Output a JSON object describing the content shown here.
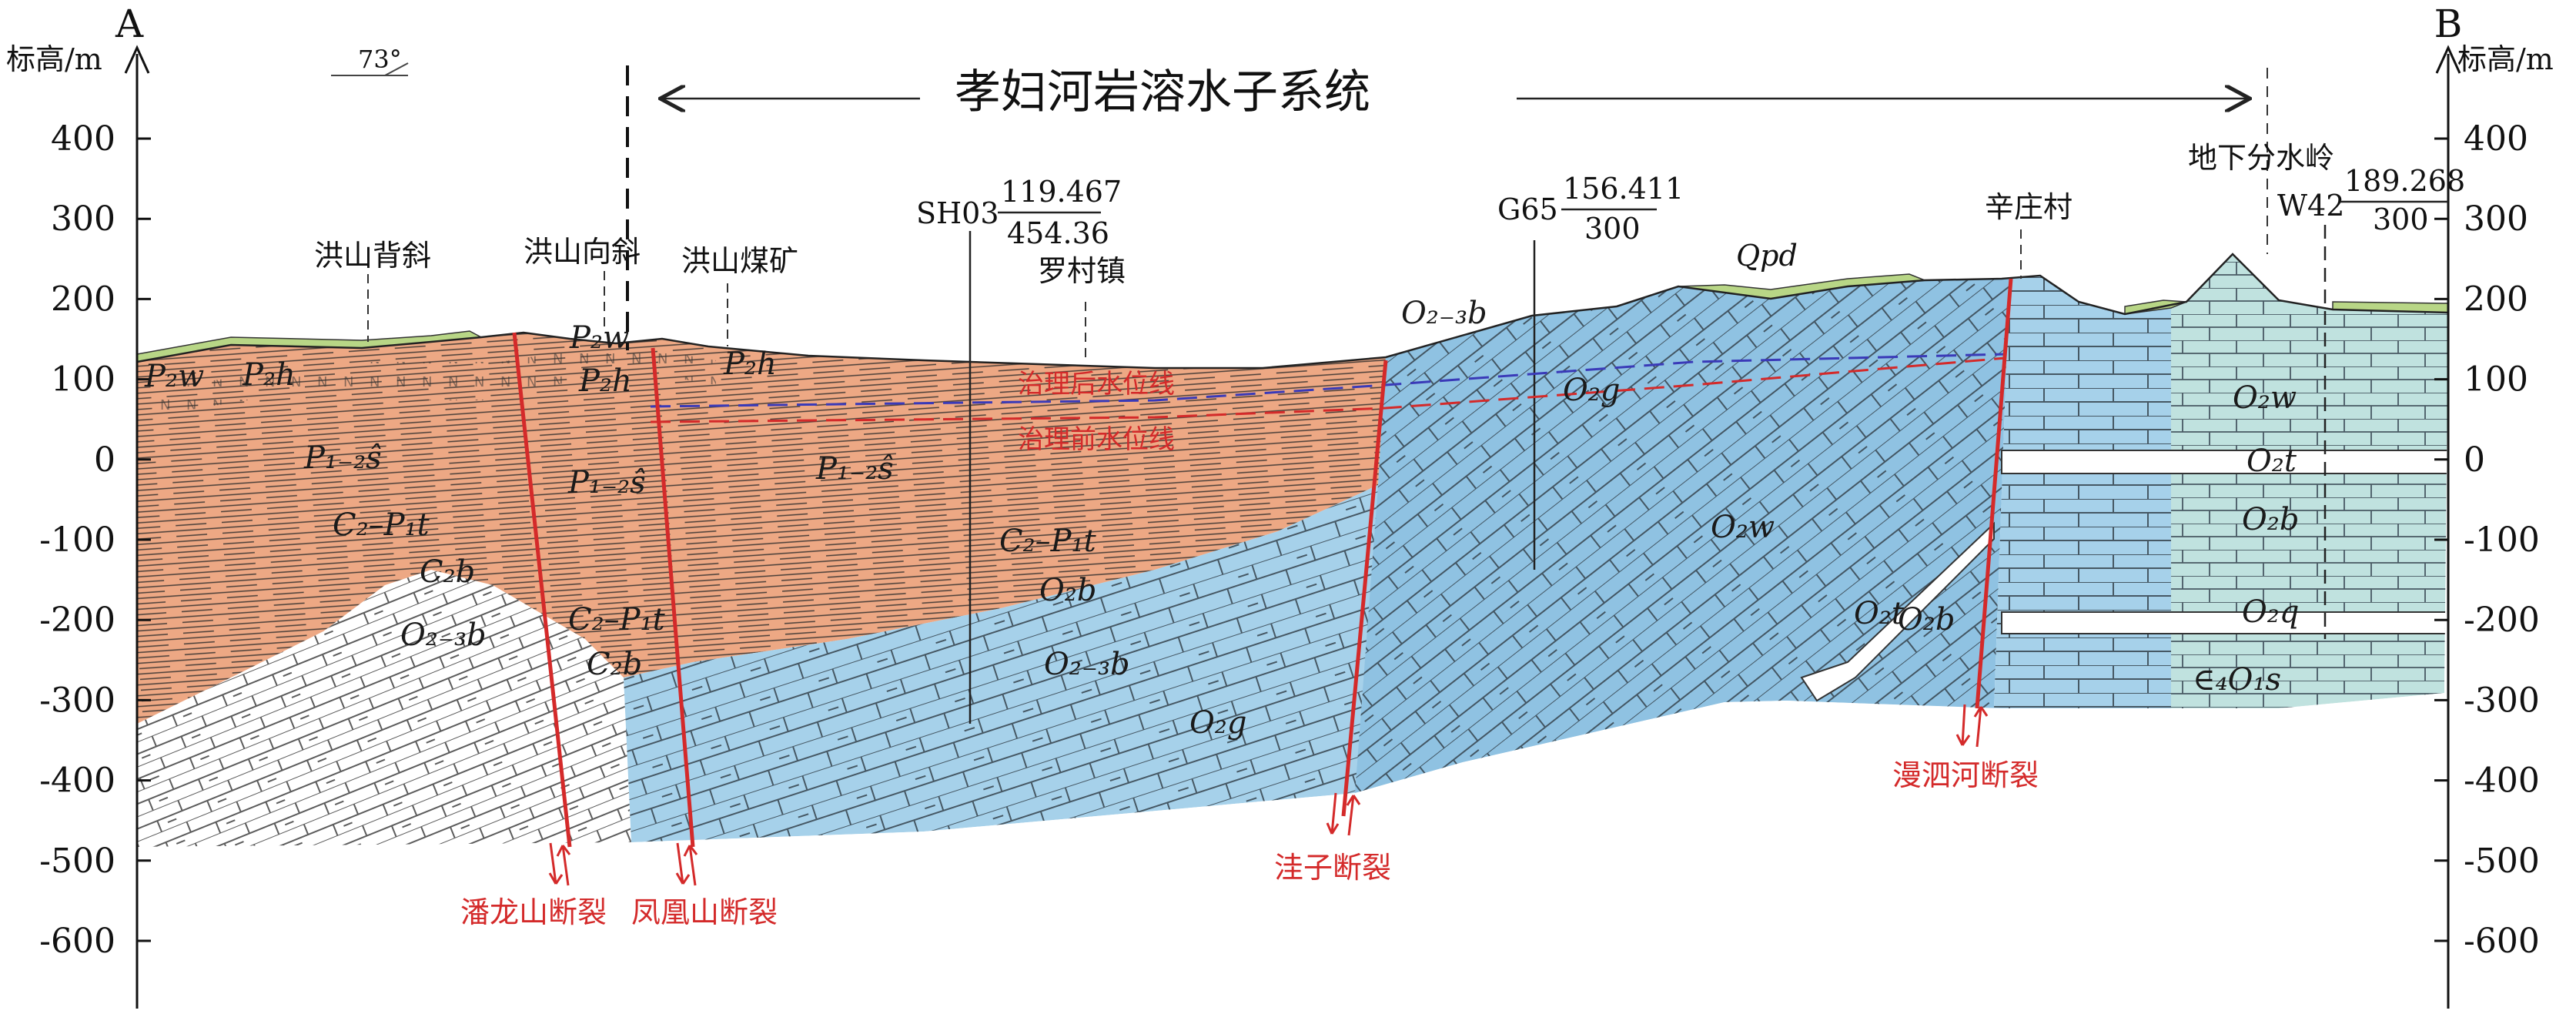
{
  "figure": {
    "title": "孝妇河岩溶水子系统",
    "endpoints": {
      "left": "A",
      "right": "B"
    },
    "axis_label": "标高/m",
    "ticks": [
      "400",
      "300",
      "200",
      "100",
      "0",
      "-100",
      "-200",
      "-300",
      "-400",
      "-500",
      "-600"
    ],
    "dip_label": "73°"
  },
  "top_labels": {
    "hongshan_anticline": "洪山背斜",
    "hongshan_syncline": "洪山向斜",
    "hongshan_mine": "洪山煤矿",
    "luocun": "罗村镇",
    "xinzhuang": "辛庄村",
    "watershed": "地下分水岭",
    "qpd": "Qpd"
  },
  "wells": [
    {
      "id": "SH03",
      "upper": "119.467",
      "lower": "454.36"
    },
    {
      "id": "G65",
      "upper": "156.411",
      "lower": "300"
    },
    {
      "id": "W42",
      "upper": "189.268",
      "lower": "300"
    }
  ],
  "water_levels": {
    "after": "治理后水位线",
    "before": "治理前水位线"
  },
  "faults": [
    {
      "name": "潘龙山断裂"
    },
    {
      "name": "凤凰山断裂"
    },
    {
      "name": "洼子断裂"
    },
    {
      "name": "漫泗河断裂"
    }
  ],
  "strata": {
    "p2w_a": "P₂w",
    "p2h_a": "P₂h",
    "p2w_b": "P₂w",
    "p2h_b": "P₂h",
    "p2h_c": "P₂h",
    "p12s_a": "P₁₋₂ŝ",
    "p12s_b": "P₁₋₂ŝ",
    "p12s_c": "P₁₋₂ŝ",
    "c2p1t_a": "C₂–P₁t",
    "c2p1t_b": "C₂–P₁t",
    "c2p1t_c": "C₂–P₁t",
    "c2b_a": "C₂b",
    "c2b_b": "C₂b",
    "o23b_a": "O₂₋₃b",
    "o23b_b": "O₂₋₃b",
    "o23b_c": "O₂₋₃b",
    "o2b_a": "O₂b",
    "o2b_b": "O₂b",
    "o2b_c": "O₂b",
    "o2g_a": "O₂g",
    "o2g_b": "O₂g",
    "o2w_a": "O₂w",
    "o2w_b": "O₂w",
    "o2t_a": "O₂t",
    "o2t_b": "O₂t",
    "o2q": "O₂q",
    "c4o1s": "∈₄O₁s"
  },
  "colors": {
    "permian": "#eda884",
    "limestone_light": "#a6d1ea",
    "limestone_mid": "#89bddf",
    "dolomite": "#c0e2df",
    "soil": "#b8d686",
    "fault": "#d42a2a",
    "wl_after": "#3a3ab8",
    "wl_before": "#d42a2a"
  }
}
